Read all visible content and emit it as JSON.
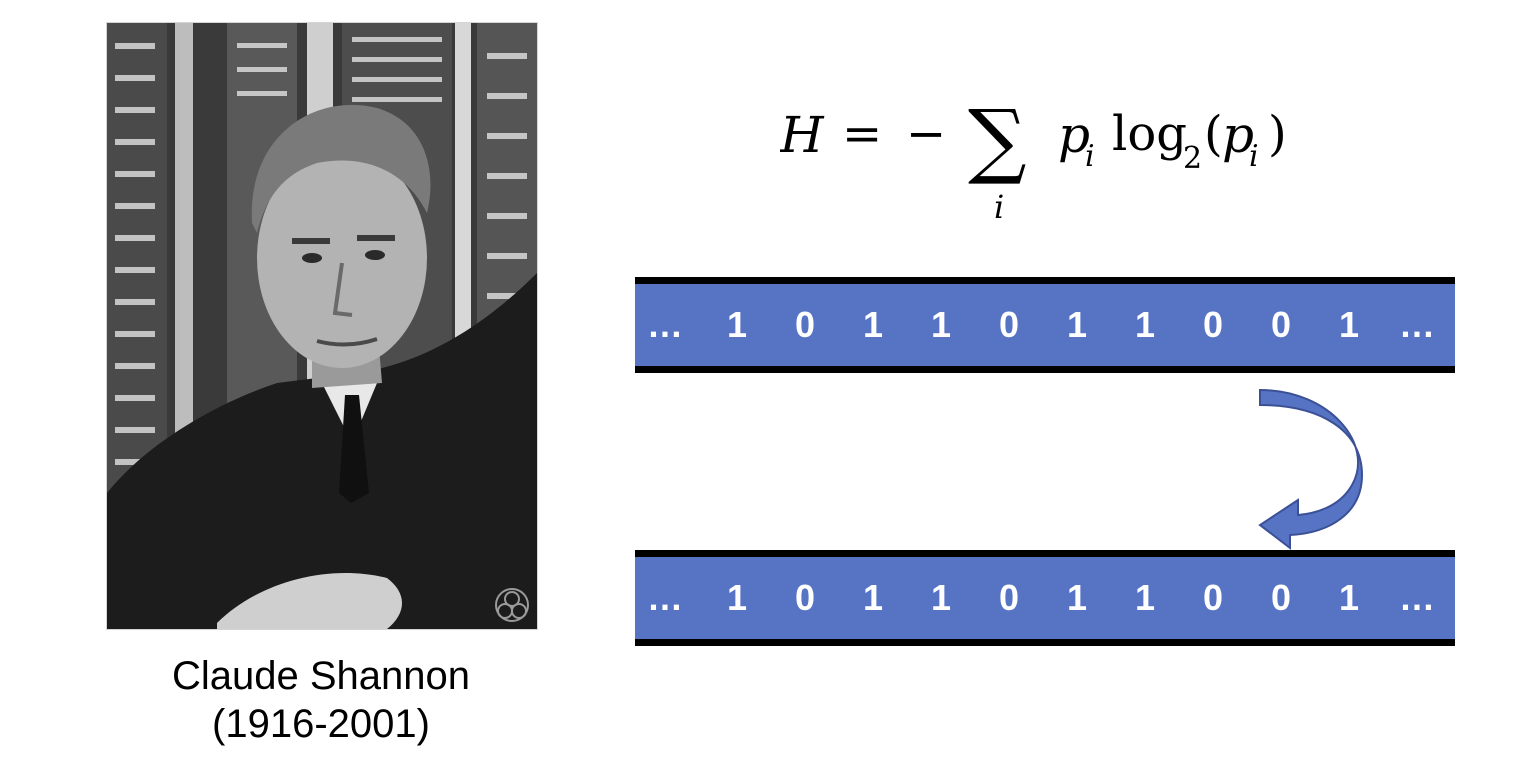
{
  "caption": {
    "name": "Claude Shannon",
    "years": "(1916-2001)"
  },
  "formula": {
    "lhs": "H",
    "equals": "=",
    "minus": "−",
    "sum": "∑",
    "sum_index": "i",
    "p": "p",
    "p_sub": "i",
    "log": "log",
    "log_base": "2",
    "paren_open": "(",
    "paren_close": ")"
  },
  "bit_strip_top": {
    "tokens": [
      "…",
      "1",
      "0",
      "1",
      "1",
      "0",
      "1",
      "1",
      "0",
      "0",
      "1",
      "…"
    ]
  },
  "bit_strip_bottom": {
    "tokens": [
      "…",
      "1",
      "0",
      "1",
      "1",
      "0",
      "1",
      "1",
      "0",
      "0",
      "1",
      "…"
    ]
  },
  "colors": {
    "strip_fill": "#5673c4",
    "strip_edge": "#000000",
    "arrow_fill": "#5673c4",
    "arrow_stroke": "#3b5096",
    "bit_text": "#ffffff"
  },
  "icons": {
    "arrow": "curved-down-left-arrow-icon",
    "watermark": "trefoil-logo-icon"
  }
}
